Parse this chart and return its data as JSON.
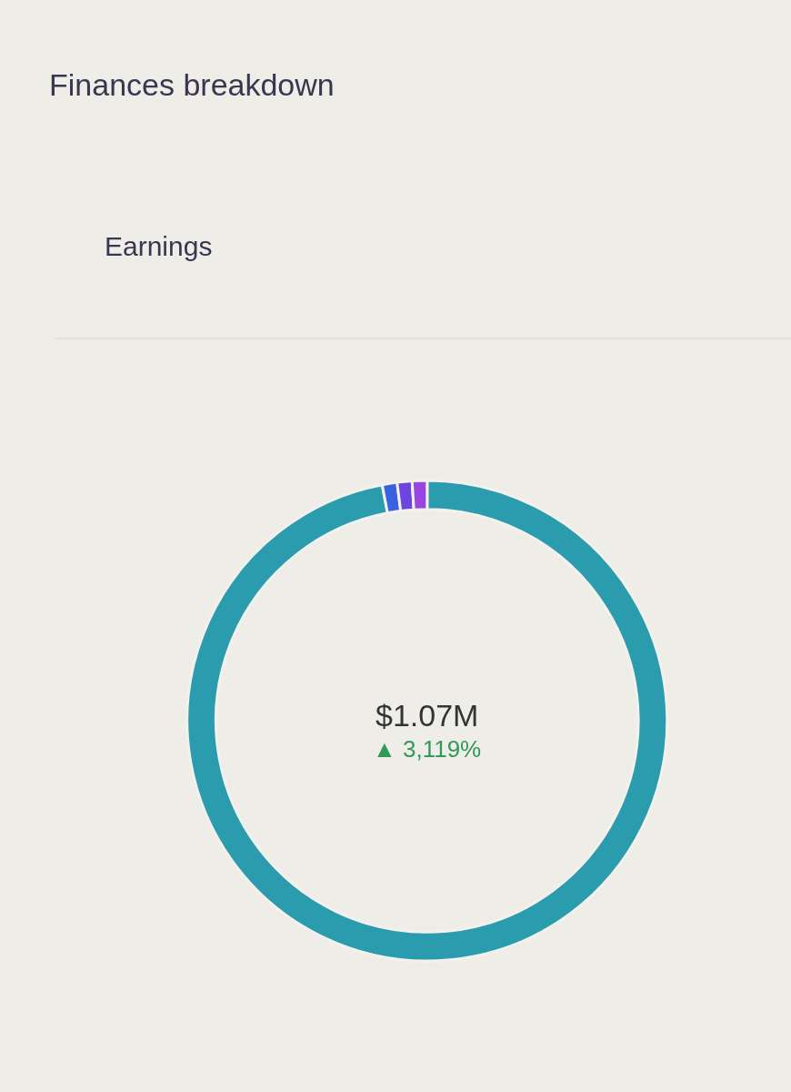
{
  "chart_data": {
    "type": "donut",
    "title": "Finances breakdown",
    "subtitle": "Earnings",
    "categories": [
      null,
      null,
      null,
      null
    ],
    "values": [
      97,
      1,
      1,
      1
    ],
    "colors": [
      "#2a9cae",
      "#3a62e0",
      "#6a45e0",
      "#9a45e0"
    ],
    "annotations": [
      "$1.07M",
      "▲ 3,119%"
    ],
    "legend": false
  }
}
